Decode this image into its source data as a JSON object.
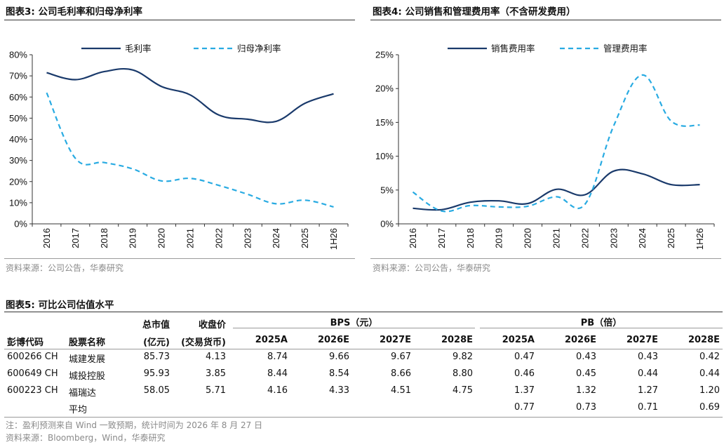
{
  "chart3": {
    "title": "图表3:  公司毛利率和归母净利率",
    "source": "资料来源：公司公告，华泰研究"
  },
  "chart4": {
    "title": "图表4:  公司销售和管理费用率（不含研发费用）",
    "source": "资料来源：公司公告，华泰研究"
  },
  "chart_data": [
    {
      "type": "line",
      "categories": [
        "2016",
        "2017",
        "2018",
        "2019",
        "2020",
        "2021",
        "2022",
        "2023",
        "2024",
        "2025",
        "1H26"
      ],
      "series": [
        {
          "name": "毛利率",
          "values": [
            71.5,
            68.2,
            72.0,
            72.8,
            65.0,
            61.0,
            51.5,
            49.5,
            48.5,
            57.0,
            61.5
          ],
          "color": "#1a3a6b",
          "style": "solid"
        },
        {
          "name": "归母净利率",
          "values": [
            62.0,
            31.0,
            29.0,
            26.0,
            20.3,
            21.5,
            18.2,
            14.0,
            9.5,
            11.2,
            8.0
          ],
          "color": "#29abe2",
          "style": "dashed"
        }
      ],
      "ylim": [
        0,
        80
      ],
      "yticks": [
        "0%",
        "10%",
        "20%",
        "30%",
        "40%",
        "50%",
        "60%",
        "70%",
        "80%"
      ],
      "legend": "top"
    },
    {
      "type": "line",
      "categories": [
        "2016",
        "2017",
        "2018",
        "2019",
        "2020",
        "2021",
        "2022",
        "2023",
        "2024",
        "2025",
        "1H26"
      ],
      "series": [
        {
          "name": "销售费用率",
          "values": [
            2.3,
            2.1,
            3.2,
            3.4,
            3.0,
            5.1,
            4.3,
            7.8,
            7.4,
            5.8,
            5.8
          ],
          "color": "#1a3a6b",
          "style": "solid"
        },
        {
          "name": "管理费用率",
          "values": [
            4.7,
            1.9,
            2.7,
            2.5,
            2.6,
            4.0,
            2.9,
            14.5,
            22.0,
            15.2,
            14.6
          ],
          "color": "#29abe2",
          "style": "dashed"
        }
      ],
      "ylim": [
        0,
        25
      ],
      "yticks": [
        "0%",
        "5%",
        "10%",
        "15%",
        "20%",
        "25%"
      ],
      "legend": "top"
    }
  ],
  "table5": {
    "title": "图表5:   可比公司估值水平",
    "headers": {
      "code": "彭博代码",
      "name": "股票名称",
      "mktcap_1": "总市值",
      "mktcap_2": "(亿元)",
      "close_1": "收盘价",
      "close_2": "(交易货币)",
      "bps": "BPS（元）",
      "pb": "PB（倍）",
      "years": [
        "2025A",
        "2026E",
        "2027E",
        "2028E"
      ]
    },
    "rows": [
      {
        "code": "600266 CH",
        "name": "城建发展",
        "mktcap": "85.73",
        "close": "4.13",
        "bps": [
          "8.74",
          "9.66",
          "9.67",
          "9.82"
        ],
        "pb": [
          "0.47",
          "0.43",
          "0.43",
          "0.42"
        ]
      },
      {
        "code": "600649 CH",
        "name": "城投控股",
        "mktcap": "95.93",
        "close": "3.85",
        "bps": [
          "8.44",
          "8.54",
          "8.66",
          "8.80"
        ],
        "pb": [
          "0.46",
          "0.45",
          "0.44",
          "0.44"
        ]
      },
      {
        "code": "600223 CH",
        "name": "福瑞达",
        "mktcap": "58.05",
        "close": "5.71",
        "bps": [
          "4.16",
          "4.33",
          "4.51",
          "4.75"
        ],
        "pb": [
          "1.37",
          "1.32",
          "1.27",
          "1.20"
        ]
      }
    ],
    "average": {
      "label": "平均",
      "pb": [
        "0.77",
        "0.73",
        "0.71",
        "0.69"
      ]
    },
    "note": "注：盈利预测来自 Wind 一致预期，统计时间为 2026 年 8 月 27 日",
    "source": "资料来源：Bloomberg，Wind，华泰研究"
  }
}
